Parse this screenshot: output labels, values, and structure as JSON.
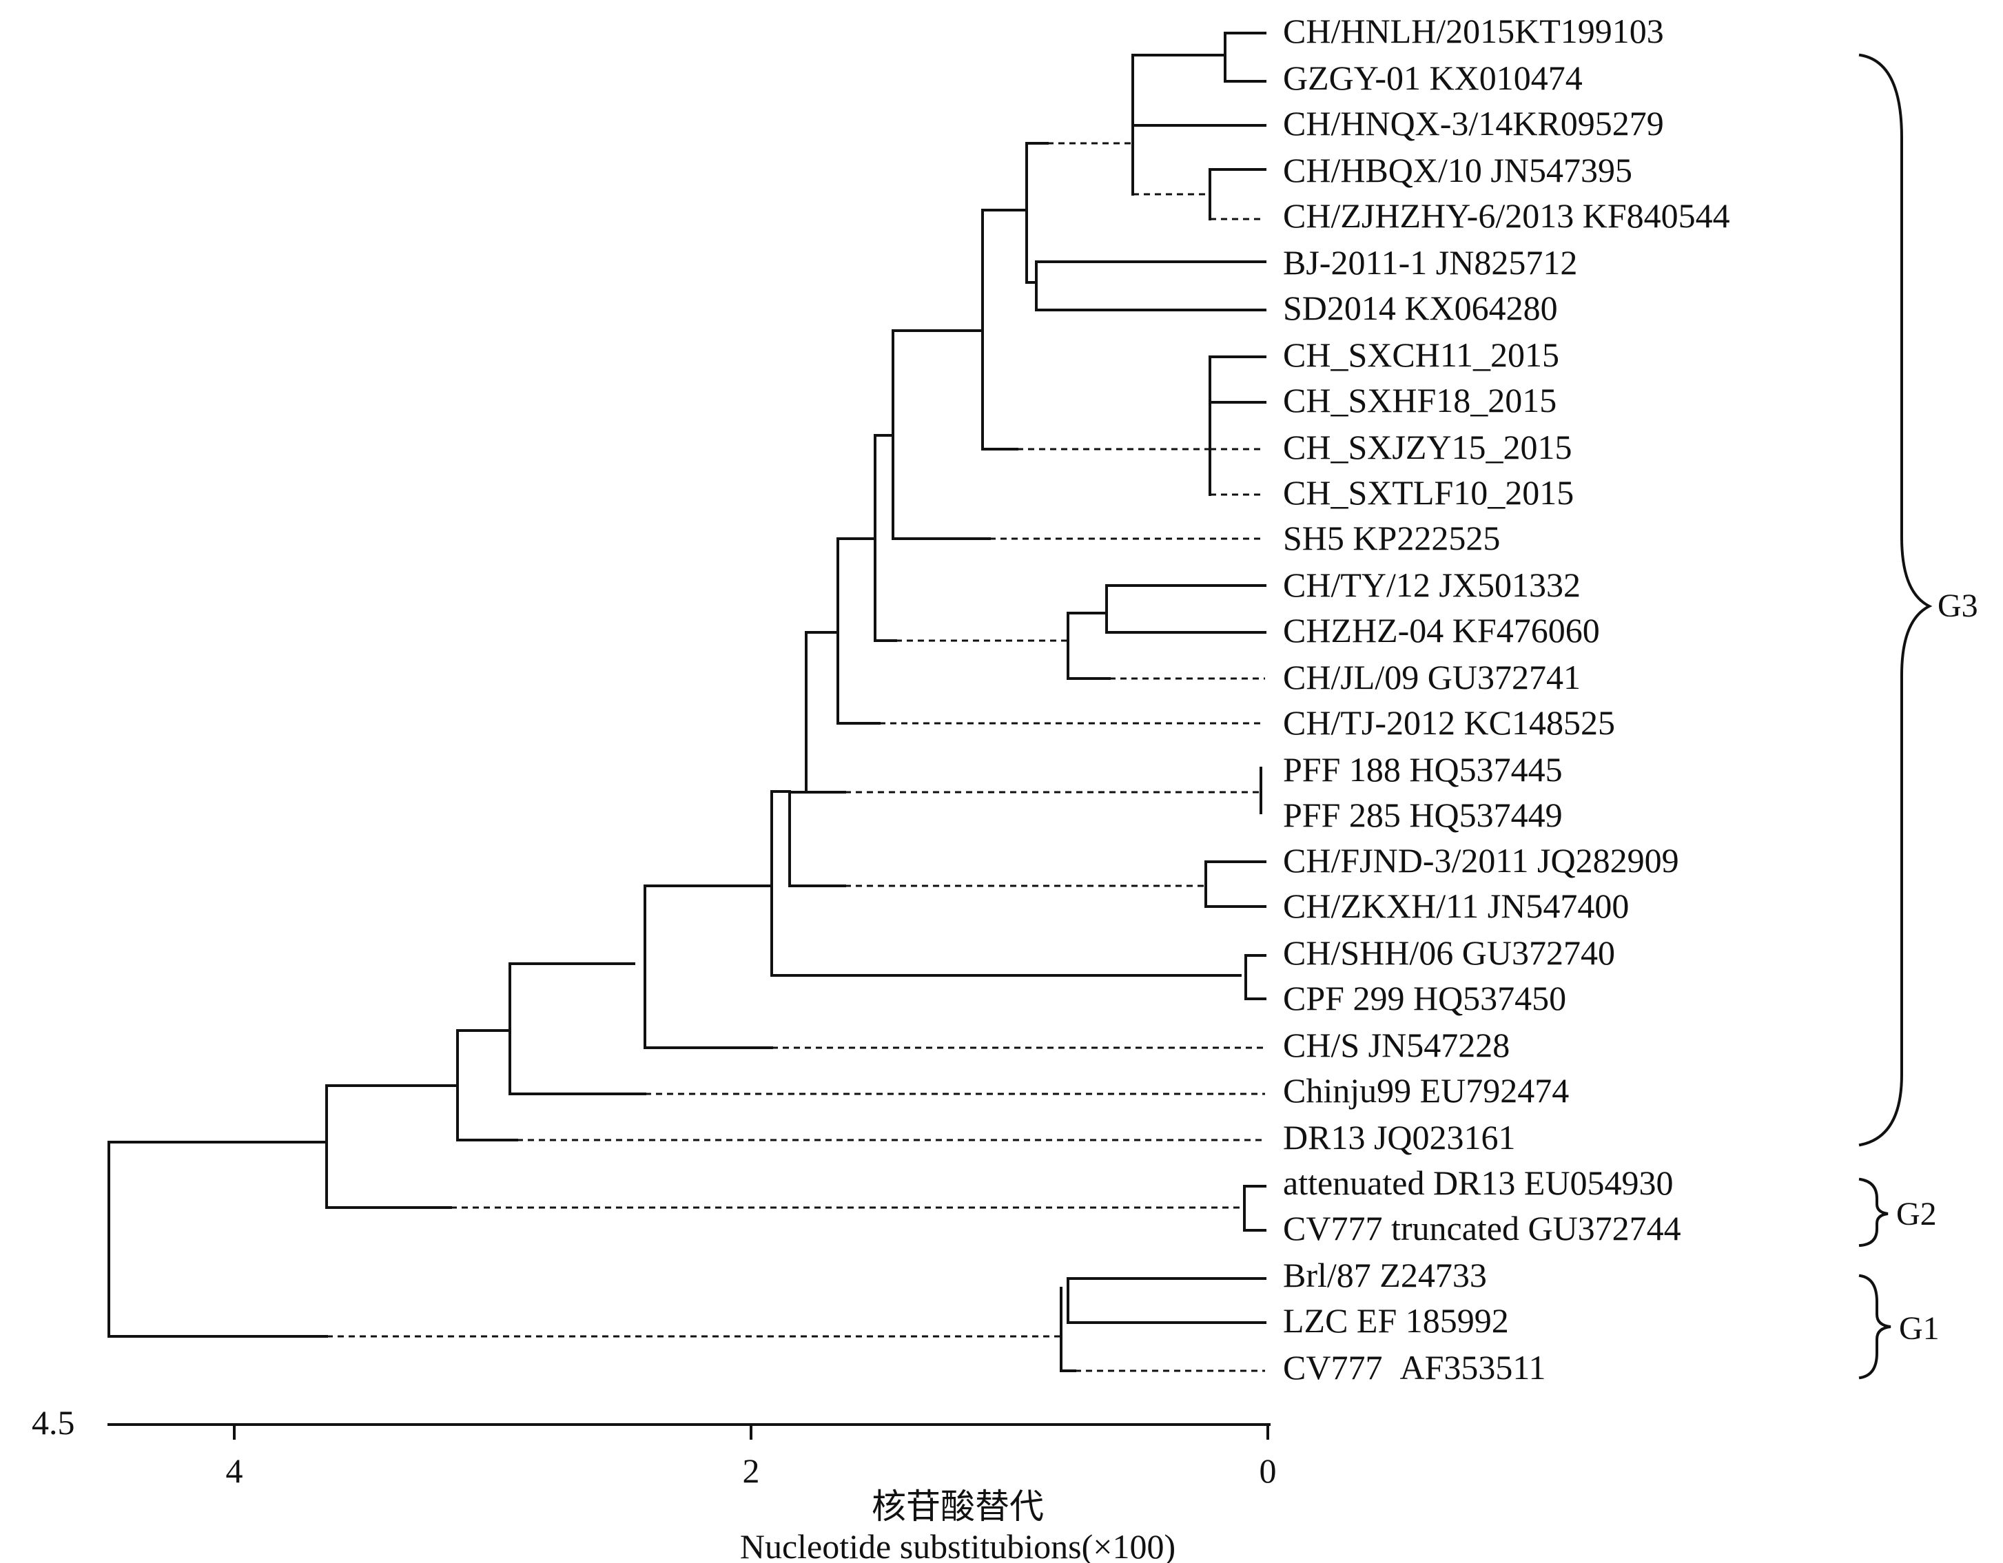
{
  "tree": {
    "leaves": [
      "CH/HNLH/2015KT199103",
      "GZGY-01 KX010474",
      "CH/HNQX-3/14KR095279",
      "CH/HBQX/10 JN547395",
      "CH/ZJHZHY-6/2013 KF840544",
      "BJ-2011-1 JN825712",
      "SD2014 KX064280",
      "CH_SXCH11_2015",
      "CH_SXHF18_2015",
      "CH_SXJZY15_2015",
      "CH_SXTLF10_2015",
      "SH5 KP222525",
      "CH/TY/12 JX501332",
      "CHZHZ-04 KF476060",
      "CH/JL/09 GU372741",
      "CH/TJ-2012 KC148525",
      "PFF 188 HQ537445",
      "PFF 285 HQ537449",
      "CH/FJND-3/2011 JQ282909",
      "CH/ZKXH/11 JN547400",
      "CH/SHH/06 GU372740",
      "CPF 299 HQ537450",
      "CH/S JN547228",
      "Chinju99 EU792474",
      "DR13 JQ023161",
      "attenuated DR13 EU054930",
      "CV777 truncated GU372744",
      "Brl/87 Z24733",
      "LZC EF 185992",
      "CV777  AF353511"
    ],
    "groups": [
      {
        "label": "G3",
        "first": 1,
        "last": 24
      },
      {
        "label": "G2",
        "first": 25,
        "last": 26
      },
      {
        "label": "G1",
        "first": 27,
        "last": 29
      }
    ]
  },
  "axis": {
    "left_value": "4.5",
    "ticks": [
      "4",
      "2",
      "0"
    ],
    "label_cn": "核苷酸替代",
    "label_en": "Nucleotide substitubions(×100)"
  }
}
